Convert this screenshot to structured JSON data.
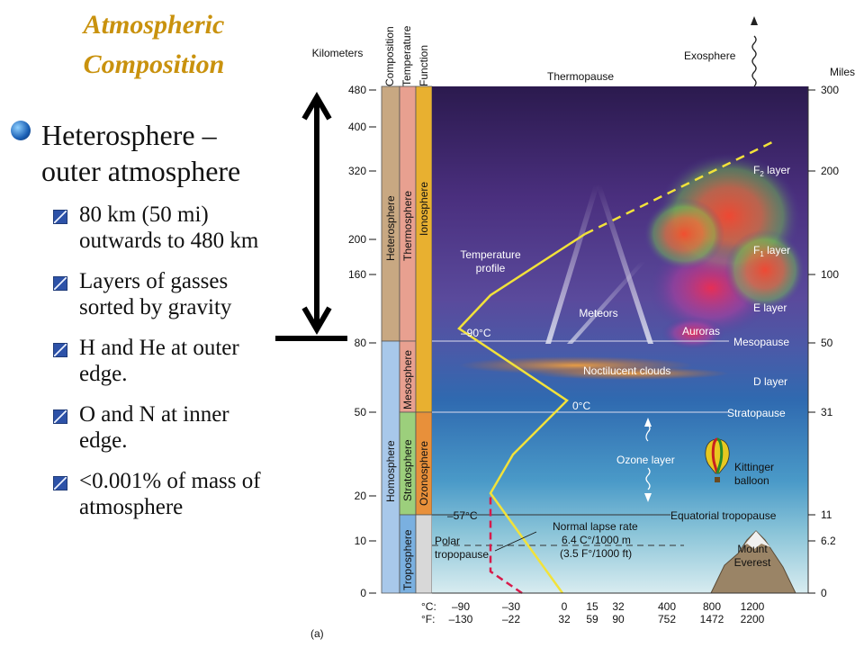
{
  "slide": {
    "title_line1": "Atmospheric",
    "title_line2": "Composition",
    "heading_line1": "Heterosphere –",
    "heading_line2": "outer atmosphere",
    "bullets": [
      {
        "line1": "80 km (50 mi)",
        "line2": "outwards to 480 km"
      },
      {
        "line1": "Layers of gasses",
        "line2": "sorted by gravity"
      },
      {
        "line1": "H and He at outer",
        "line2": "edge."
      },
      {
        "line1": "O and N at inner",
        "line2": "edge."
      },
      {
        "line1": "<0.001% of mass of",
        "line2": "atmosphere"
      }
    ]
  },
  "diagram": {
    "axis_left_title": "Kilometers",
    "axis_right_title": "Miles",
    "km_ticks": [
      "480",
      "400",
      "320",
      "200",
      "160",
      "80",
      "50",
      "20",
      "10",
      "0"
    ],
    "mile_ticks": [
      "300",
      "200",
      "100",
      "50",
      "31",
      "11",
      "6.2",
      "0"
    ],
    "column_headers": {
      "composition": "Composition",
      "temperature": "Temperature",
      "function": "Function"
    },
    "columns": {
      "heterosphere": "Heterosphere",
      "homosphere": "Homosphere",
      "thermosphere": "Thermosphere",
      "mesosphere": "Mesosphere",
      "stratosphere": "Stratosphere",
      "troposphere": "Troposphere",
      "ionosphere": "Ionosphere",
      "ozonosphere": "Ozonosphere"
    },
    "labels": {
      "thermopause": "Thermopause",
      "exosphere": "Exosphere",
      "f2_main": "F",
      "f2_sub": "2",
      "f2_tail": " layer",
      "f1_main": "F",
      "f1_sub": "1",
      "f1_tail": " layer",
      "e_layer": "E layer",
      "d_layer": "D layer",
      "temp_profile_1": "Temperature",
      "temp_profile_2": "profile",
      "meteors": "Meteors",
      "auroras": "Auroras",
      "mesopause": "Mesopause",
      "noctilucent": "Noctilucent clouds",
      "stratopause": "Stratopause",
      "ozone_layer": "Ozone layer",
      "balloon_1": "Kittinger",
      "balloon_2": "balloon",
      "equatorial_tropopause": "Equatorial tropopause",
      "normal_lapse_1": "Normal lapse rate",
      "normal_lapse_2": "6.4 C°/1000 m",
      "normal_lapse_3": "(3.5 F°/1000 ft)",
      "polar_1": "Polar",
      "polar_2": "tropopause",
      "everest_1": "Mount",
      "everest_2": "Everest",
      "temp_minus90": "–90°C",
      "temp_0": "0°C",
      "temp_minus57": "–57°C",
      "panel_label": "(a)"
    },
    "celsius_prefix": "°C:",
    "fahrenheit_prefix": "°F:",
    "celsius_ticks": [
      "–90",
      "–30",
      "0",
      "15",
      "32",
      "400",
      "800",
      "1200"
    ],
    "fahrenheit_ticks": [
      "–130",
      "–22",
      "32",
      "59",
      "90",
      "752",
      "1472",
      "2200"
    ]
  },
  "colors": {
    "title": "#c9920e",
    "heterosphere": "#c8a882",
    "homosphere": "#a8c8ea",
    "thermosphere": "#e8a090",
    "mesosphere": "#e8a090",
    "stratosphere": "#9ccf7c",
    "troposphere": "#7ab0e0",
    "ionosphere": "#e8b030",
    "ozonosphere": "#e8903a",
    "temperature_line": "#f2e23a"
  }
}
